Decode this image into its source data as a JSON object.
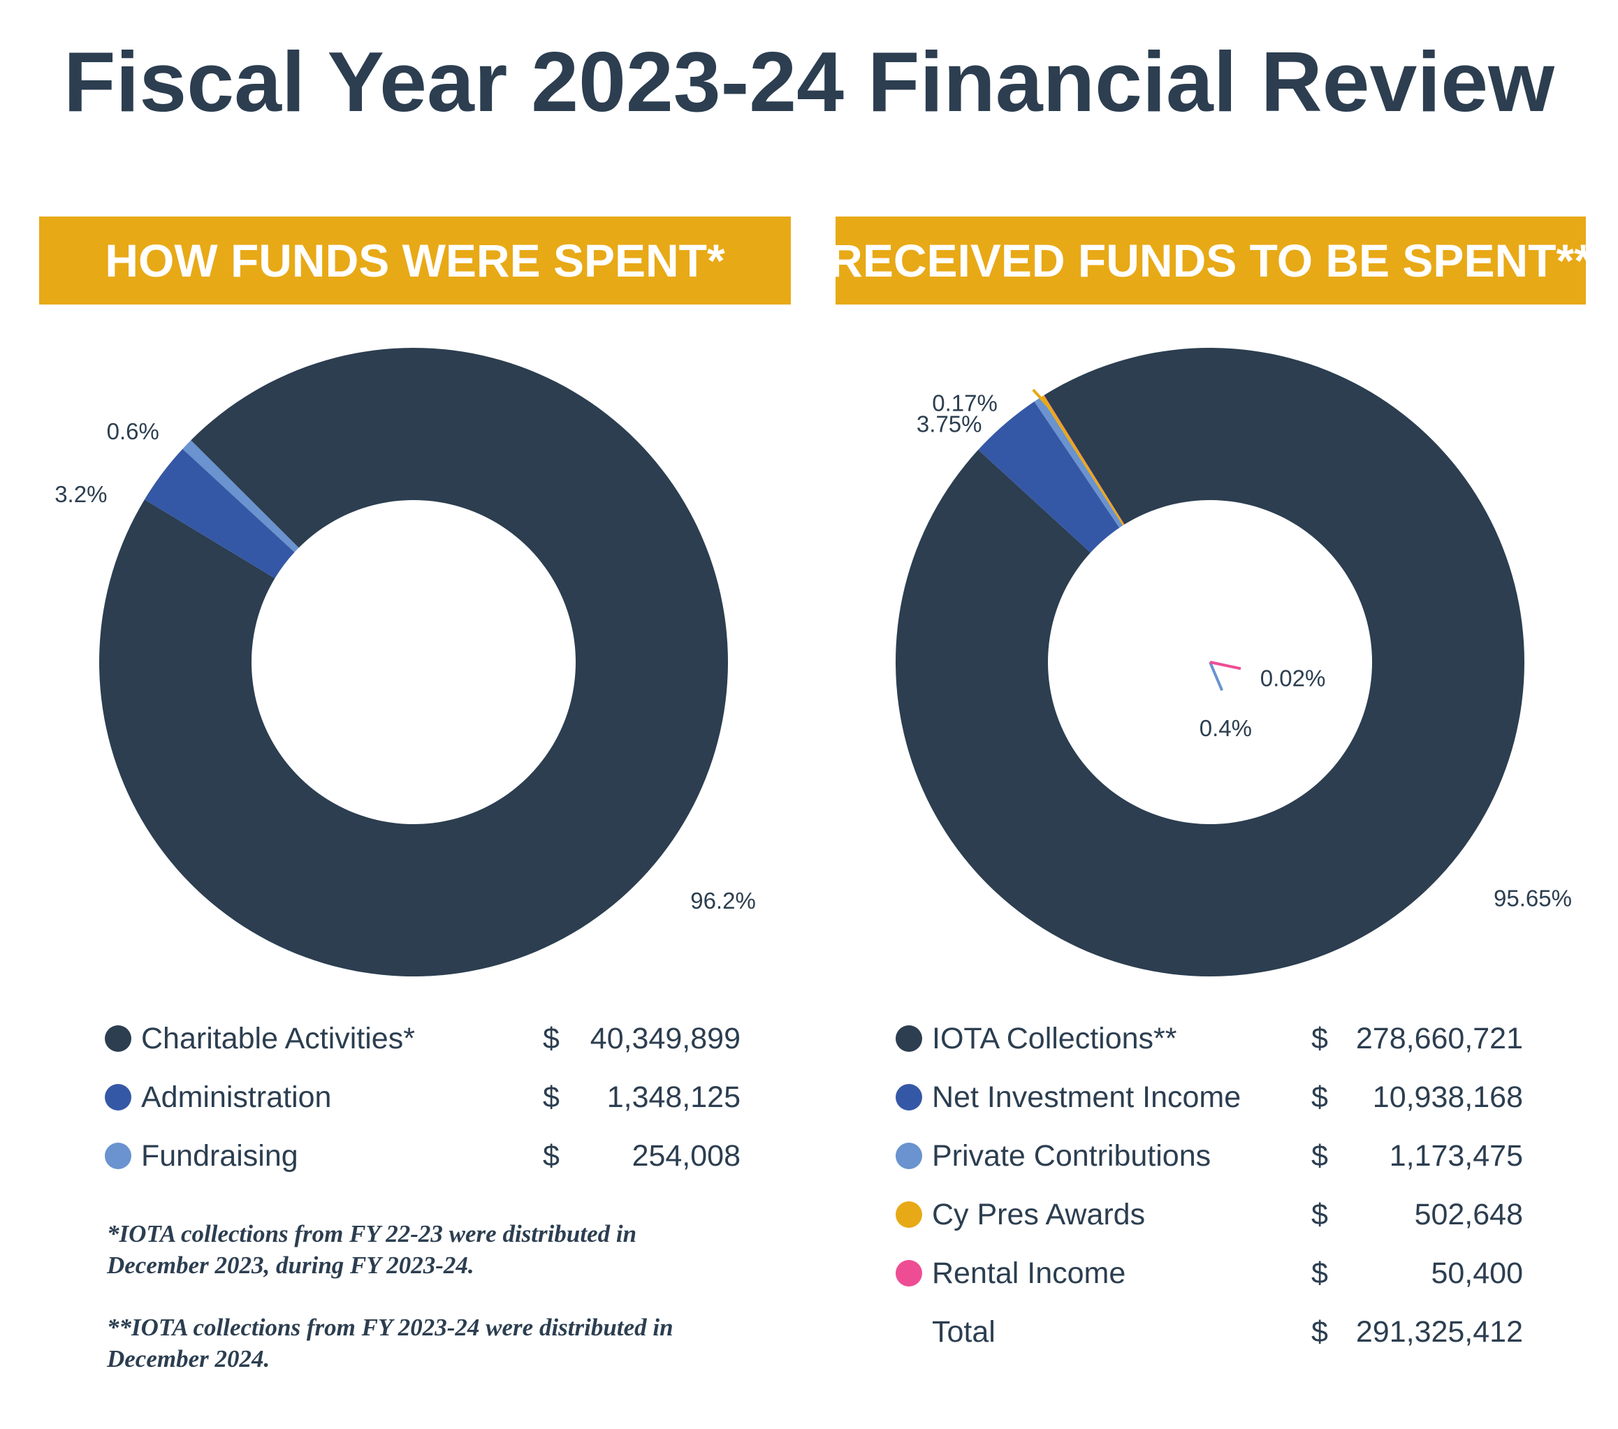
{
  "title": "Fiscal Year 2023-24 Financial Review",
  "colors": {
    "banner": "#e8a917",
    "title_text": "#2c3e50"
  },
  "left_panel": {
    "banner": "HOW FUNDS WERE SPENT*",
    "legend": [
      {
        "label": "Charitable Activities*",
        "dollar": "$",
        "amount": "40,349,899",
        "color": "#2c3e50"
      },
      {
        "label": "Administration",
        "dollar": "$",
        "amount": "1,348,125",
        "color": "#3558a6"
      },
      {
        "label": "Fundraising",
        "dollar": "$",
        "amount": "254,008",
        "color": "#6a93cf"
      }
    ],
    "footnotes": [
      "*IOTA collections from FY 22-23 were distributed in December 2023, during FY 2023-24.",
      "**IOTA collections from FY 2023-24 were distributed in December 2024."
    ]
  },
  "right_panel": {
    "banner": "RECEIVED FUNDS TO BE SPENT**",
    "legend": [
      {
        "label": "IOTA Collections**",
        "dollar": "$",
        "amount": "278,660,721",
        "color": "#2c3e50"
      },
      {
        "label": "Net Investment Income",
        "dollar": "$",
        "amount": "10,938,168",
        "color": "#3558a6"
      },
      {
        "label": "Private Contributions",
        "dollar": "$",
        "amount": "1,173,475",
        "color": "#6a93cf"
      },
      {
        "label": "Cy Pres Awards",
        "dollar": "$",
        "amount": "502,648",
        "color": "#e8a917"
      },
      {
        "label": "Rental Income",
        "dollar": "$",
        "amount": "50,400",
        "color": "#ee4d94"
      },
      {
        "label": "Total",
        "dollar": "$",
        "amount": "291,325,412",
        "color": ""
      }
    ]
  },
  "chart_data": [
    {
      "type": "pie",
      "title": "HOW FUNDS WERE SPENT*",
      "donut": true,
      "categories": [
        "Charitable Activities*",
        "Administration",
        "Fundraising"
      ],
      "values": [
        40349899,
        1348125,
        254008
      ],
      "percent_labels": [
        "96.2%",
        "3.2%",
        "0.6%"
      ],
      "colors": [
        "#2c3e50",
        "#3558a6",
        "#6a93cf"
      ]
    },
    {
      "type": "pie",
      "title": "RECEIVED FUNDS TO BE SPENT**",
      "donut": true,
      "categories": [
        "IOTA Collections**",
        "Net Investment Income",
        "Private Contributions",
        "Cy Pres Awards",
        "Rental Income"
      ],
      "values": [
        278660721,
        10938168,
        1173475,
        502648,
        50400
      ],
      "percent_labels": [
        "95.65%",
        "3.75%",
        "0.4%",
        "0.17%",
        "0.02%"
      ],
      "colors": [
        "#2c3e50",
        "#3558a6",
        "#6a93cf",
        "#e8a917",
        "#ee4d94"
      ],
      "total": 291325412
    }
  ]
}
